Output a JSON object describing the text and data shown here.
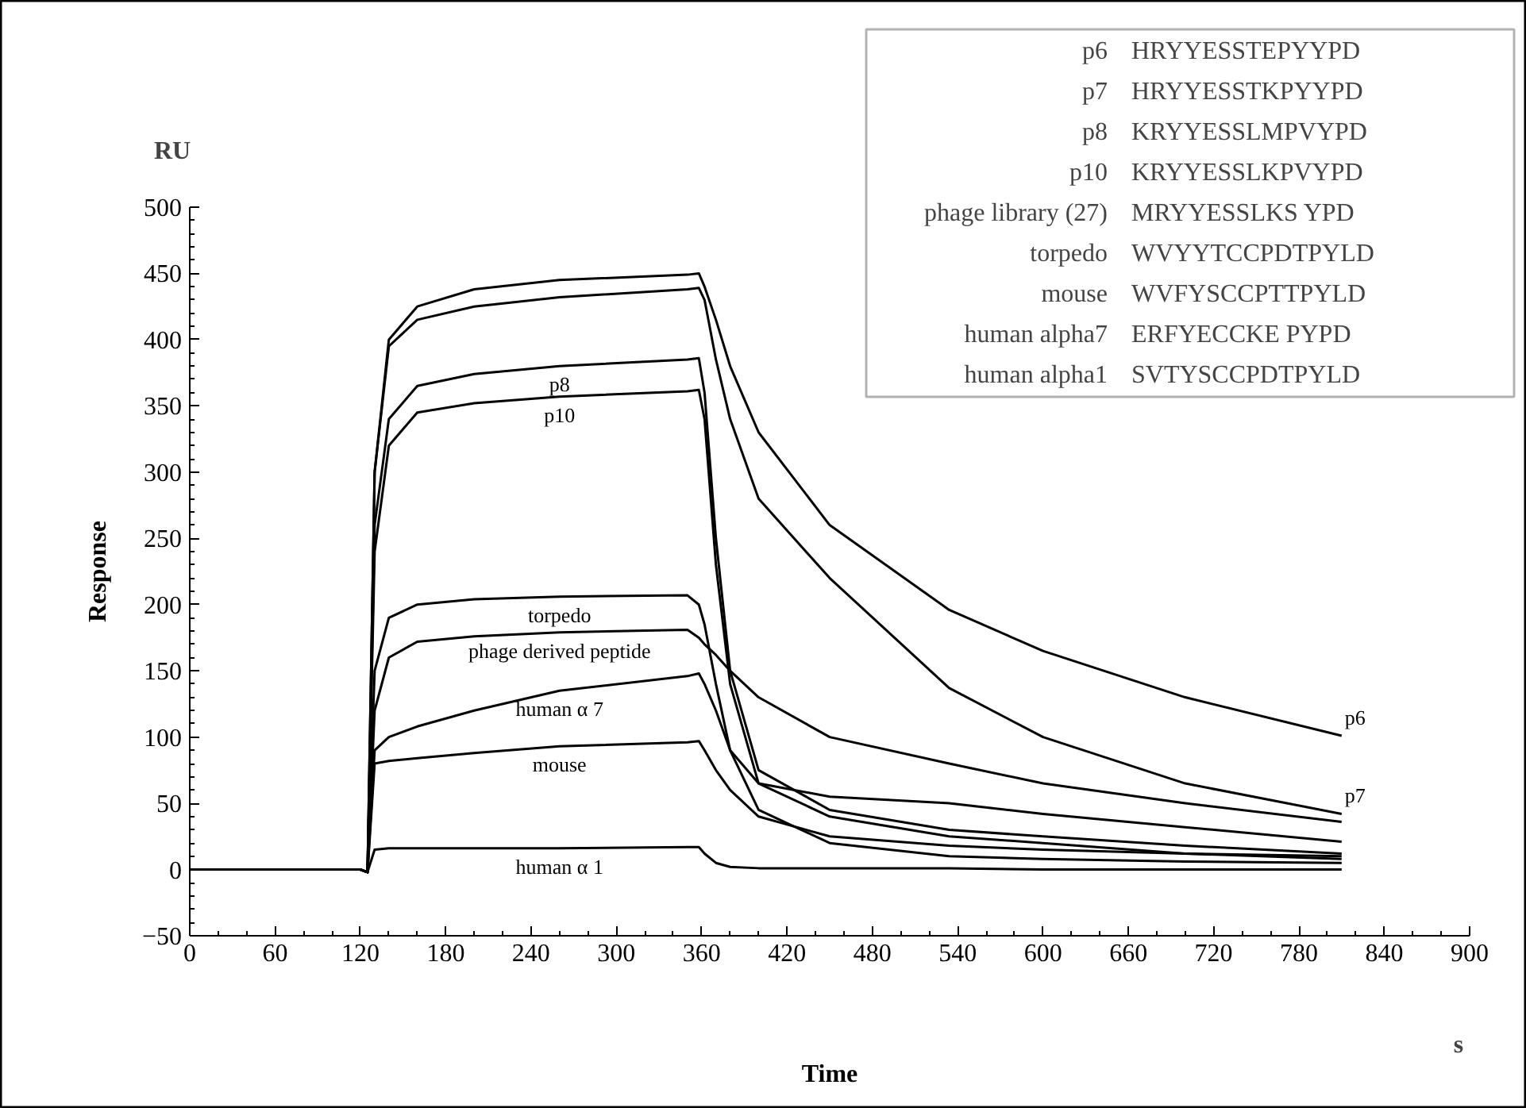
{
  "chart_data": {
    "type": "line",
    "xlabel": "Time",
    "ylabel": "Response",
    "annotations": [
      "RU",
      "s",
      "p6",
      "HRYYESSTEPYYPD",
      "p7",
      "HRYYESSTKPYYPD",
      "p8",
      "KRYYESSLMPVYPD",
      "p10",
      "KRYYESSLKPVYPD",
      "phage library (27)",
      "MRYYESSLKS YPD",
      "torpedo",
      "WVYYTCCPDTPYLD",
      "mouse",
      "WVFYSCCPTTPYLD",
      "human alpha7",
      "ERFYECCKE PYPD",
      "human alpha1",
      "SVTYSCCPDTPYLD"
    ],
    "x": [
      0,
      120,
      125,
      130,
      140,
      160,
      200,
      260,
      350,
      358,
      362,
      370,
      380,
      400,
      450,
      534,
      600,
      700,
      810
    ],
    "series": [
      {
        "name": "p6",
        "color": "#000000",
        "values": [
          0,
          0,
          -2,
          300,
          400,
          425,
          438,
          445,
          449,
          450,
          440,
          415,
          380,
          330,
          260,
          196,
          165,
          130,
          101
        ]
      },
      {
        "name": "p7",
        "color": "#000000",
        "values": [
          0,
          0,
          -2,
          300,
          395,
          415,
          425,
          432,
          438,
          439,
          430,
          385,
          340,
          280,
          220,
          137,
          100,
          65,
          42
        ]
      },
      {
        "name": "p8",
        "color": "#000000",
        "values": [
          0,
          0,
          -2,
          260,
          340,
          365,
          374,
          380,
          385,
          386,
          360,
          250,
          150,
          75,
          45,
          30,
          25,
          18,
          12
        ]
      },
      {
        "name": "p10",
        "color": "#000000",
        "values": [
          0,
          0,
          -2,
          240,
          320,
          345,
          352,
          357,
          361,
          362,
          340,
          230,
          140,
          65,
          40,
          25,
          20,
          12,
          8
        ]
      },
      {
        "name": "torpedo",
        "color": "#000000",
        "values": [
          0,
          0,
          -2,
          150,
          190,
          200,
          204,
          206,
          207,
          200,
          185,
          140,
          90,
          45,
          20,
          10,
          8,
          6,
          5
        ]
      },
      {
        "name": "phage derived peptide",
        "color": "#000000",
        "values": [
          0,
          0,
          -2,
          120,
          160,
          172,
          176,
          179,
          181,
          175,
          170,
          162,
          150,
          130,
          100,
          80,
          65,
          50,
          36
        ]
      },
      {
        "name": "human α 7",
        "color": "#000000",
        "values": [
          0,
          0,
          -2,
          90,
          100,
          108,
          120,
          135,
          146,
          148,
          140,
          120,
          90,
          65,
          55,
          50,
          42,
          32,
          21
        ]
      },
      {
        "name": "mouse",
        "color": "#000000",
        "values": [
          0,
          0,
          -2,
          80,
          82,
          84,
          88,
          93,
          96,
          97,
          90,
          75,
          60,
          40,
          25,
          18,
          15,
          12,
          10
        ]
      },
      {
        "name": "human α 1",
        "color": "#000000",
        "values": [
          0,
          0,
          -2,
          15,
          16,
          16,
          16,
          16,
          17,
          17,
          12,
          5,
          2,
          1,
          1,
          1,
          0,
          0,
          0
        ]
      }
    ],
    "xlim": [
      0,
      900
    ],
    "xticks": [
      0,
      60,
      120,
      180,
      240,
      300,
      360,
      420,
      480,
      540,
      600,
      660,
      720,
      780,
      840,
      900
    ],
    "ylim": [
      -50,
      500
    ],
    "yticks": [
      -50,
      0,
      50,
      100,
      150,
      200,
      250,
      300,
      350,
      400,
      450,
      500
    ],
    "marker": "none",
    "line_style": "solid",
    "grid": false,
    "legend": false
  }
}
